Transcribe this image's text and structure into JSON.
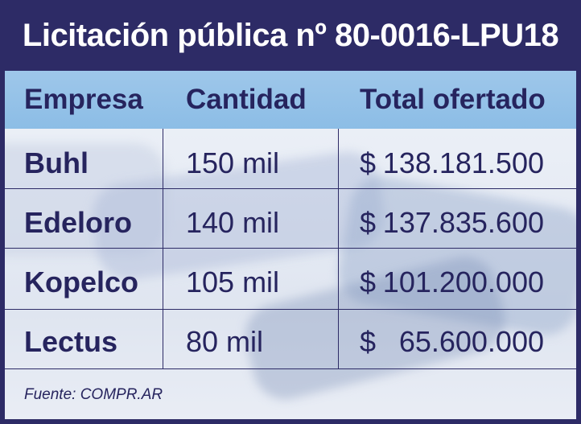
{
  "title": "Licitación pública nº 80-0016-LPU18",
  "table": {
    "headers": [
      "Empresa",
      "Cantidad",
      "Total ofertado"
    ],
    "rows": [
      {
        "empresa": "Buhl",
        "cantidad": "150 mil",
        "currency": "$",
        "total": "138.181.500"
      },
      {
        "empresa": "Edeloro",
        "cantidad": "140 mil",
        "currency": "$",
        "total": "137.835.600"
      },
      {
        "empresa": "Kopelco",
        "cantidad": "105 mil",
        "currency": "$",
        "total": "101.200.000"
      },
      {
        "empresa": "Lectus",
        "cantidad": "80 mil",
        "currency": "$",
        "total": "65.600.000"
      }
    ]
  },
  "source": "Fuente:  COMPR.AR",
  "colors": {
    "frame": "#2d2b66",
    "header_band": "#9ec7ea",
    "text": "#26245e",
    "title_text": "#ffffff"
  }
}
